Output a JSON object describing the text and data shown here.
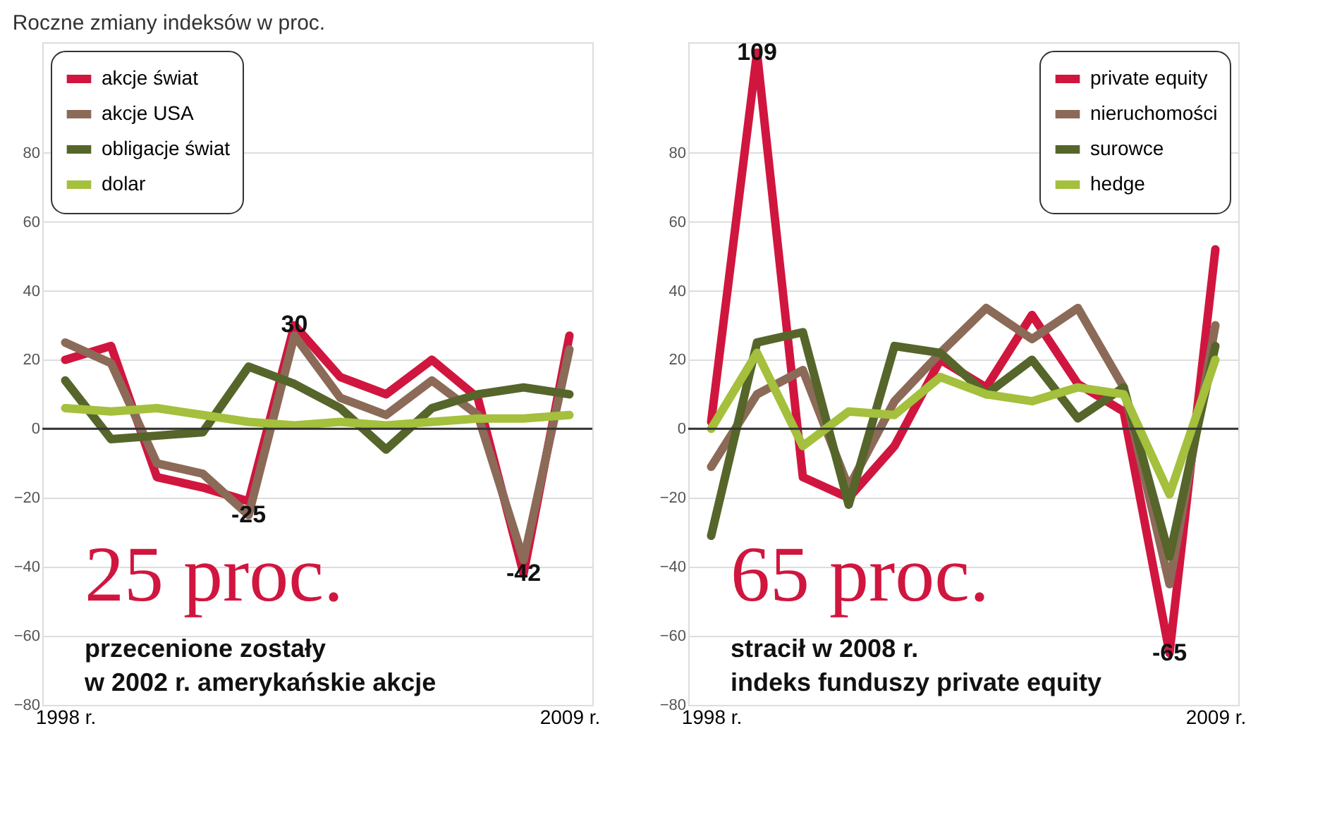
{
  "chart_data": [
    {
      "type": "line",
      "title": "Roczne zmiany indeksów w proc.",
      "categories": [
        "1998 r.",
        null,
        null,
        null,
        null,
        null,
        null,
        null,
        null,
        null,
        null,
        "2009 r."
      ],
      "series": [
        {
          "name": "akcje świat",
          "color": "#d0163f",
          "values": [
            20,
            24,
            -14,
            -17,
            -21,
            30,
            15,
            10,
            20,
            9,
            -42,
            27
          ],
          "value_labels": [
            null,
            null,
            null,
            null,
            null,
            "30",
            null,
            null,
            null,
            null,
            "-42",
            null
          ]
        },
        {
          "name": "akcje USA",
          "color": "#8c6a58",
          "values": [
            25,
            19,
            -10,
            -13,
            -25,
            27,
            9,
            4,
            14,
            4,
            -38,
            23
          ],
          "value_labels": [
            null,
            null,
            null,
            null,
            "-25",
            null,
            null,
            null,
            null,
            null,
            null,
            null
          ]
        },
        {
          "name": "obligacje świat",
          "color": "#56652a",
          "values": [
            14,
            -3,
            -2,
            -1,
            18,
            13,
            6,
            -6,
            6,
            10,
            12,
            10
          ]
        },
        {
          "name": "dolar",
          "color": "#a4c03c",
          "values": [
            6,
            5,
            6,
            4,
            2,
            1,
            2,
            1,
            2,
            3,
            3,
            4
          ]
        }
      ],
      "ylim": [
        -80,
        112
      ],
      "yticks": [
        -80,
        -60,
        -40,
        -20,
        0,
        20,
        40,
        60,
        80
      ],
      "grid": "y",
      "legend": "top left",
      "ref_lines": [
        {
          "axis": "y",
          "value": 0,
          "color": "#333333"
        }
      ],
      "annotations": [
        "25 proc.",
        "przecenione zostały",
        "w 2002 r. amerykańskie akcje"
      ]
    },
    {
      "type": "line",
      "categories": [
        "1998 r.",
        null,
        null,
        null,
        null,
        null,
        null,
        null,
        null,
        null,
        null,
        "2009 r."
      ],
      "series": [
        {
          "name": "private equity",
          "color": "#d0163f",
          "values": [
            2,
            109,
            -14,
            -20,
            -5,
            20,
            12,
            33,
            13,
            5,
            -65,
            52
          ],
          "value_labels": [
            null,
            "109",
            null,
            null,
            null,
            null,
            null,
            null,
            null,
            null,
            "-65",
            null
          ]
        },
        {
          "name": "nieruchomości",
          "color": "#8c6a58",
          "values": [
            -11,
            10,
            17,
            -17,
            8,
            22,
            35,
            26,
            35,
            12,
            -45,
            30
          ]
        },
        {
          "name": "surowce",
          "color": "#56652a",
          "values": [
            -31,
            25,
            28,
            -22,
            24,
            22,
            10,
            20,
            3,
            12,
            -37,
            24
          ]
        },
        {
          "name": "hedge",
          "color": "#a4c03c",
          "values": [
            0,
            22,
            -5,
            5,
            4,
            15,
            10,
            8,
            12,
            10,
            -19,
            20
          ]
        }
      ],
      "ylim": [
        -80,
        112
      ],
      "yticks": [
        -80,
        -60,
        -40,
        -20,
        0,
        20,
        40,
        60,
        80
      ],
      "grid": "y",
      "legend": "top right",
      "ref_lines": [
        {
          "axis": "y",
          "value": 0,
          "color": "#333333"
        }
      ],
      "annotations": [
        "65 proc.",
        "stracił w 2008 r.",
        "indeks funduszy private equity"
      ]
    }
  ]
}
